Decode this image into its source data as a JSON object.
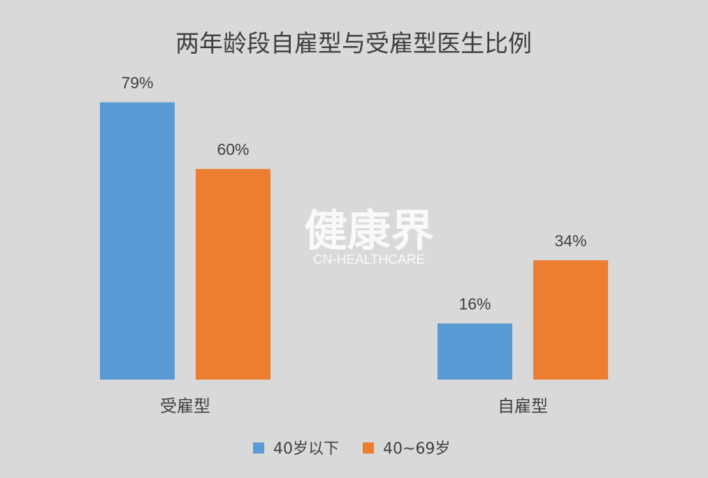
{
  "chart_data": {
    "type": "bar",
    "title": "两年龄段自雇型与受雇型医生比例",
    "categories": [
      "受雇型",
      "自雇型"
    ],
    "series": [
      {
        "name": "40岁以下",
        "color": "#5b9bd5",
        "values": [
          79,
          16
        ],
        "labels": [
          "79%",
          "16%"
        ]
      },
      {
        "name": "40~69岁",
        "color": "#ed7d31",
        "values": [
          60,
          34
        ],
        "labels": [
          "60%",
          "34%"
        ]
      }
    ],
    "ylim": [
      0,
      100
    ],
    "grid": false,
    "legend": "bottom",
    "xlabel": "",
    "ylabel": ""
  },
  "watermark": {
    "main": "健康界",
    "sub": "CN-HEALTHCARE"
  }
}
